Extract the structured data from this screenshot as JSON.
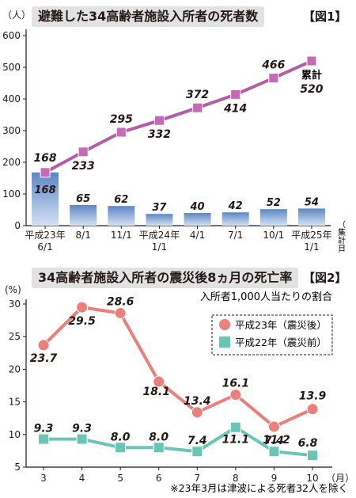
{
  "chart_data": [
    {
      "type": "bar",
      "title": "避難した34高齢者施設入所者の死者数",
      "fig_label": "【図1】",
      "ylabel": "（人）",
      "xlabel": "（集計日）",
      "ylim": [
        0,
        600
      ],
      "yticks": [
        0,
        100,
        200,
        300,
        400,
        500,
        600
      ],
      "categories": [
        [
          "平成23年",
          "6/1"
        ],
        [
          "8/1"
        ],
        [
          "11/1"
        ],
        [
          "平成24年",
          "1/1"
        ],
        [
          "4/1"
        ],
        [
          "7/1"
        ],
        [
          "10/1"
        ],
        [
          "平成25年",
          "1/1"
        ]
      ],
      "series": [
        {
          "type": "bar",
          "values": [
            168,
            65,
            62,
            37,
            40,
            42,
            52,
            54
          ],
          "labels": [
            "168",
            "65",
            "62",
            "37",
            "40",
            "42",
            "52",
            "54"
          ]
        },
        {
          "name": "累計",
          "type": "line",
          "values": [
            168,
            233,
            295,
            332,
            372,
            414,
            466,
            520
          ],
          "labels": [
            "168",
            "233",
            "295",
            "332",
            "372",
            "414",
            "466",
            "520"
          ]
        }
      ],
      "colors": {
        "bar_top": "#5d86c4",
        "bar_bottom": "#cddcf0",
        "line": "#b65ba5",
        "marker": "#c46bb3"
      },
      "grid": false
    },
    {
      "type": "line",
      "title": "34高齢者施設入所者の震災後8ヵ月の死亡率",
      "fig_label": "【図2】",
      "subtitle": "入所者1,000人当たりの割合",
      "ylabel": "(%)",
      "xlabel": "（月）",
      "ylim": [
        5,
        30
      ],
      "yticks": [
        5,
        10,
        15,
        20,
        25,
        30
      ],
      "x": [
        3,
        4,
        5,
        6,
        7,
        8,
        9,
        10
      ],
      "series": [
        {
          "name": "平成23年（震災後）",
          "marker": "circle",
          "color": "#ea7f7c",
          "values": [
            23.7,
            29.5,
            28.6,
            18.1,
            13.4,
            16.1,
            11.2,
            13.9
          ],
          "labels": [
            "23.7",
            "29.5",
            "28.6",
            "18.1",
            "13.4",
            "16.1",
            "11.2",
            "13.9"
          ]
        },
        {
          "name": "平成22年（震災前）",
          "marker": "square",
          "color": "#6ac5b6",
          "values": [
            9.3,
            9.3,
            8.0,
            8.0,
            7.4,
            11.1,
            7.4,
            6.8
          ],
          "labels": [
            "9.3",
            "9.3",
            "8.0",
            "8.0",
            "7.4",
            "11.1",
            "7.4",
            "6.8"
          ]
        }
      ],
      "legend_position": "top-right",
      "footnote": "※23年3月は津波による死者32人を除く",
      "grid": false
    }
  ]
}
